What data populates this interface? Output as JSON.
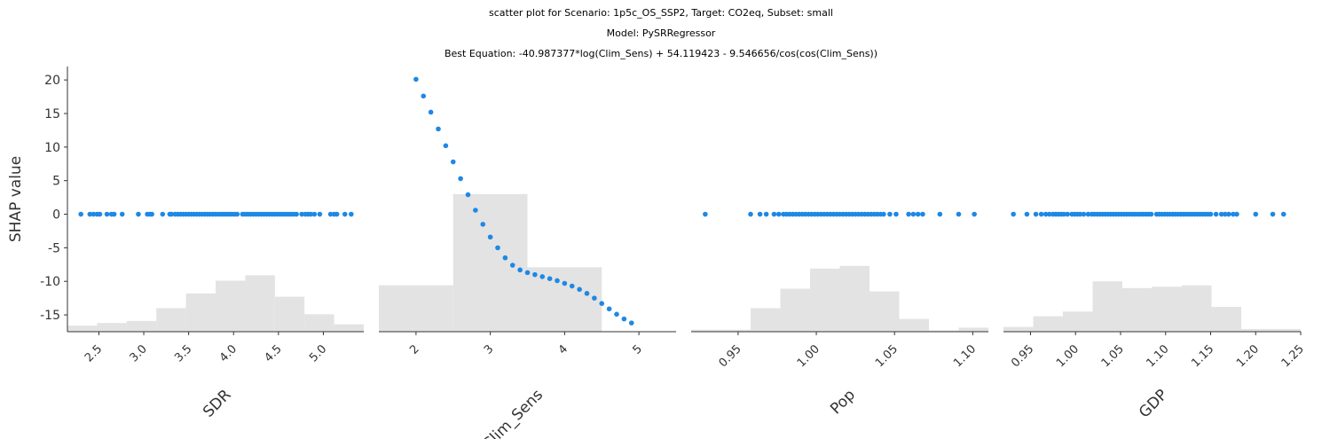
{
  "figure": {
    "title_lines": [
      "scatter plot for Scenario: 1p5c_OS_SSP2, Target: CO2eq, Subset: small",
      "Model: PySRRegressor",
      "Best Equation: -40.987377*log(Clim_Sens) + 54.119423 - 9.546656/cos(cos(Clim_Sens))"
    ],
    "ylabel": "SHAP value",
    "point_color": "#1E88E5",
    "hist_color": "#E3E3E3"
  },
  "chart_data": {
    "type": "scatter",
    "ylabel": "SHAP value",
    "ylim": [
      -17.5,
      22
    ],
    "yticks": [
      20,
      15,
      10,
      5,
      0,
      -5,
      -10,
      -15
    ],
    "panels": [
      {
        "xlabel": "SDR",
        "xlim": [
          2.15,
          5.45
        ],
        "xticks": [
          "2.5",
          "3.0",
          "3.5",
          "4.0",
          "4.5",
          "5.0"
        ],
        "hist": [
          {
            "from": 2.15,
            "to": 2.48,
            "y": -16.6
          },
          {
            "from": 2.48,
            "to": 2.81,
            "y": -16.2
          },
          {
            "from": 2.81,
            "to": 3.14,
            "y": -15.9
          },
          {
            "from": 3.14,
            "to": 3.47,
            "y": -14.0
          },
          {
            "from": 3.47,
            "to": 3.8,
            "y": -11.8
          },
          {
            "from": 3.8,
            "to": 4.13,
            "y": -9.9
          },
          {
            "from": 4.13,
            "to": 4.46,
            "y": -9.1
          },
          {
            "from": 4.46,
            "to": 4.79,
            "y": -12.3
          },
          {
            "from": 4.79,
            "to": 5.12,
            "y": -14.9
          },
          {
            "from": 5.12,
            "to": 5.45,
            "y": -16.4
          }
        ],
        "points_x": [
          2.3,
          2.4,
          2.44,
          2.48,
          2.51,
          2.59,
          2.64,
          2.67,
          2.76,
          2.94,
          3.04,
          3.07,
          3.09,
          3.21,
          3.29,
          3.31,
          3.35,
          3.38,
          3.41,
          3.44,
          3.47,
          3.5,
          3.53,
          3.56,
          3.59,
          3.62,
          3.65,
          3.68,
          3.71,
          3.74,
          3.77,
          3.8,
          3.83,
          3.86,
          3.89,
          3.92,
          3.95,
          3.98,
          4.01,
          4.04,
          4.1,
          4.13,
          4.16,
          4.19,
          4.22,
          4.25,
          4.28,
          4.31,
          4.34,
          4.37,
          4.4,
          4.43,
          4.46,
          4.49,
          4.52,
          4.55,
          4.58,
          4.61,
          4.64,
          4.67,
          4.7,
          4.76,
          4.8,
          4.83,
          4.86,
          4.9,
          4.96,
          5.08,
          5.12,
          5.15,
          5.24,
          5.31
        ],
        "points_y": 0
      },
      {
        "xlabel": "Clim_Sens",
        "xlim": [
          1.5,
          5.5
        ],
        "xticks": [
          "2",
          "3",
          "4",
          "5"
        ],
        "hist": [
          {
            "from": 1.5,
            "to": 2.5,
            "y": -10.6
          },
          {
            "from": 2.5,
            "to": 3.5,
            "y": 3.0
          },
          {
            "from": 3.5,
            "to": 4.5,
            "y": -7.9
          },
          {
            "from": 4.5,
            "to": 5.5,
            "y": -17.5
          }
        ],
        "points": [
          [
            2.0,
            20.1
          ],
          [
            2.1,
            17.6
          ],
          [
            2.2,
            15.2
          ],
          [
            2.3,
            12.7
          ],
          [
            2.4,
            10.2
          ],
          [
            2.5,
            7.8
          ],
          [
            2.6,
            5.3
          ],
          [
            2.7,
            2.9
          ],
          [
            2.8,
            0.6
          ],
          [
            2.9,
            -1.5
          ],
          [
            3.0,
            -3.4
          ],
          [
            3.1,
            -5.0
          ],
          [
            3.2,
            -6.5
          ],
          [
            3.3,
            -7.6
          ],
          [
            3.4,
            -8.3
          ],
          [
            3.5,
            -8.7
          ],
          [
            3.6,
            -9.0
          ],
          [
            3.7,
            -9.3
          ],
          [
            3.8,
            -9.6
          ],
          [
            3.9,
            -9.9
          ],
          [
            4.0,
            -10.3
          ],
          [
            4.1,
            -10.7
          ],
          [
            4.2,
            -11.2
          ],
          [
            4.3,
            -11.8
          ],
          [
            4.4,
            -12.5
          ],
          [
            4.5,
            -13.3
          ],
          [
            4.6,
            -14.1
          ],
          [
            4.7,
            -14.9
          ],
          [
            4.8,
            -15.6
          ],
          [
            4.9,
            -16.2
          ]
        ]
      },
      {
        "xlabel": "Pop",
        "xlim": [
          0.92,
          1.11
        ],
        "xticks": [
          "0.95",
          "1.00",
          "1.05",
          "1.10"
        ],
        "hist": [
          {
            "from": 0.92,
            "to": 0.939,
            "y": -17.2
          },
          {
            "from": 0.939,
            "to": 0.958,
            "y": -17.2
          },
          {
            "from": 0.958,
            "to": 0.977,
            "y": -14.0
          },
          {
            "from": 0.977,
            "to": 0.996,
            "y": -11.1
          },
          {
            "from": 0.996,
            "to": 1.015,
            "y": -8.1
          },
          {
            "from": 1.015,
            "to": 1.034,
            "y": -7.7
          },
          {
            "from": 1.034,
            "to": 1.053,
            "y": -11.5
          },
          {
            "from": 1.053,
            "to": 1.072,
            "y": -15.6
          },
          {
            "from": 1.072,
            "to": 1.091,
            "y": -17.3
          },
          {
            "from": 1.091,
            "to": 1.11,
            "y": -16.9
          }
        ],
        "points_x": [
          0.929,
          0.958,
          0.964,
          0.968,
          0.973,
          0.976,
          0.979,
          0.981,
          0.983,
          0.985,
          0.987,
          0.989,
          0.991,
          0.993,
          0.995,
          0.997,
          0.999,
          1.001,
          1.003,
          1.005,
          1.007,
          1.009,
          1.011,
          1.013,
          1.015,
          1.017,
          1.019,
          1.021,
          1.023,
          1.025,
          1.027,
          1.029,
          1.031,
          1.033,
          1.035,
          1.037,
          1.039,
          1.041,
          1.043,
          1.047,
          1.051,
          1.059,
          1.062,
          1.065,
          1.068,
          1.079,
          1.091,
          1.101
        ],
        "points_y": 0
      },
      {
        "xlabel": "GDP",
        "xlim": [
          0.92,
          1.25
        ],
        "xticks": [
          "0.95",
          "1.00",
          "1.05",
          "1.10",
          "1.15",
          "1.20",
          "1.25"
        ],
        "hist": [
          {
            "from": 0.92,
            "to": 0.953,
            "y": -16.8
          },
          {
            "from": 0.953,
            "to": 0.986,
            "y": -15.2
          },
          {
            "from": 0.986,
            "to": 1.019,
            "y": -14.5
          },
          {
            "from": 1.019,
            "to": 1.052,
            "y": -10.0
          },
          {
            "from": 1.052,
            "to": 1.085,
            "y": -11.0
          },
          {
            "from": 1.085,
            "to": 1.118,
            "y": -10.8
          },
          {
            "from": 1.118,
            "to": 1.151,
            "y": -10.6
          },
          {
            "from": 1.151,
            "to": 1.184,
            "y": -13.8
          },
          {
            "from": 1.184,
            "to": 1.217,
            "y": -17.1
          },
          {
            "from": 1.217,
            "to": 1.25,
            "y": -17.1
          }
        ],
        "points_x": [
          0.931,
          0.946,
          0.956,
          0.962,
          0.967,
          0.971,
          0.975,
          0.978,
          0.981,
          0.984,
          0.987,
          0.991,
          0.996,
          0.999,
          1.002,
          1.005,
          1.009,
          1.014,
          1.018,
          1.021,
          1.024,
          1.027,
          1.03,
          1.033,
          1.036,
          1.039,
          1.042,
          1.045,
          1.048,
          1.051,
          1.054,
          1.057,
          1.06,
          1.063,
          1.066,
          1.069,
          1.072,
          1.075,
          1.078,
          1.081,
          1.084,
          1.09,
          1.093,
          1.096,
          1.099,
          1.102,
          1.105,
          1.108,
          1.111,
          1.114,
          1.117,
          1.12,
          1.123,
          1.126,
          1.129,
          1.132,
          1.135,
          1.138,
          1.141,
          1.144,
          1.147,
          1.15,
          1.156,
          1.162,
          1.166,
          1.17,
          1.175,
          1.179,
          1.2,
          1.219,
          1.231
        ],
        "points_y": 0
      }
    ]
  }
}
